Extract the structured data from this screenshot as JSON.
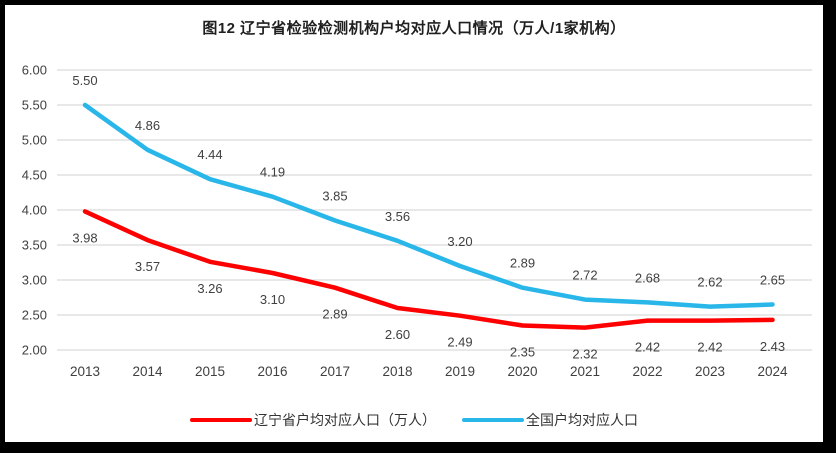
{
  "chart_data": {
    "type": "line",
    "title": "图12 辽宁省检验检测机构户均对应人口情况（万人/1家机构）",
    "categories": [
      "2013",
      "2014",
      "2015",
      "2016",
      "2017",
      "2018",
      "2019",
      "2020",
      "2021",
      "2022",
      "2023",
      "2024"
    ],
    "series": [
      {
        "name": "辽宁省户均对应人口（万人）",
        "color": "#fe0000",
        "values": [
          3.98,
          3.57,
          3.26,
          3.1,
          2.89,
          2.6,
          2.49,
          2.35,
          2.32,
          2.42,
          2.42,
          2.43
        ],
        "label_side": "below"
      },
      {
        "name": "全国户均对应人口",
        "color": "#29b6e8",
        "values": [
          5.5,
          4.86,
          4.44,
          4.19,
          3.85,
          3.56,
          3.2,
          2.89,
          2.72,
          2.68,
          2.62,
          2.65
        ],
        "label_side": "above"
      }
    ],
    "y_axis": {
      "min": 2.0,
      "max": 6.0,
      "step": 0.5,
      "decimals": 2
    },
    "grid": true,
    "legend_position": "bottom",
    "colors": {
      "gridline": "#d9d9d9",
      "axis_text": "#404040",
      "data_label_text": "#404040",
      "frame_border": "#000000"
    }
  }
}
